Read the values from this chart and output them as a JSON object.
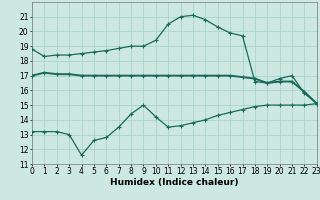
{
  "xlabel": "Humidex (Indice chaleur)",
  "background_color": "#cce8e0",
  "grid_color": "#aad4cc",
  "line_color": "#1a6b5a",
  "ylim": [
    11,
    22
  ],
  "xlim": [
    0,
    23
  ],
  "yticks": [
    11,
    12,
    13,
    14,
    15,
    16,
    17,
    18,
    19,
    20,
    21
  ],
  "xticks": [
    0,
    1,
    2,
    3,
    4,
    5,
    6,
    7,
    8,
    9,
    10,
    11,
    12,
    13,
    14,
    15,
    16,
    17,
    18,
    19,
    20,
    21,
    22,
    23
  ],
  "line1_x": [
    0,
    1,
    2,
    3,
    4,
    5,
    6,
    7,
    8,
    9,
    10,
    11,
    12,
    13,
    14,
    15,
    16,
    17,
    18,
    19,
    20,
    21,
    22,
    23
  ],
  "line1_y": [
    18.8,
    18.3,
    18.4,
    18.4,
    18.5,
    18.6,
    18.7,
    18.85,
    19.0,
    19.0,
    19.4,
    20.5,
    21.0,
    21.1,
    20.8,
    20.3,
    19.9,
    19.7,
    16.6,
    16.5,
    16.8,
    17.0,
    15.8,
    15.1
  ],
  "line2_x": [
    0,
    1,
    2,
    3,
    4,
    5,
    6,
    7,
    8,
    9,
    10,
    11,
    12,
    13,
    14,
    15,
    16,
    17,
    18,
    19,
    20,
    21,
    22,
    23
  ],
  "line2_y": [
    17.0,
    17.2,
    17.1,
    17.1,
    17.0,
    17.0,
    17.0,
    17.0,
    17.0,
    17.0,
    17.0,
    17.0,
    17.0,
    17.0,
    17.0,
    17.0,
    17.0,
    16.9,
    16.8,
    16.5,
    16.6,
    16.6,
    15.9,
    15.1
  ],
  "line3_x": [
    0,
    1,
    2,
    3,
    4,
    5,
    6,
    7,
    8,
    9,
    10,
    11,
    12,
    13,
    14,
    15,
    16,
    17,
    18,
    19,
    20,
    21,
    22,
    23
  ],
  "line3_y": [
    13.2,
    13.2,
    13.2,
    13.0,
    11.6,
    12.6,
    12.8,
    13.5,
    14.4,
    15.0,
    14.2,
    13.5,
    13.6,
    13.8,
    14.0,
    14.3,
    14.5,
    14.7,
    14.9,
    15.0,
    15.0,
    15.0,
    15.0,
    15.1
  ],
  "xlabel_fontsize": 6.5,
  "tick_fontsize": 5.5
}
